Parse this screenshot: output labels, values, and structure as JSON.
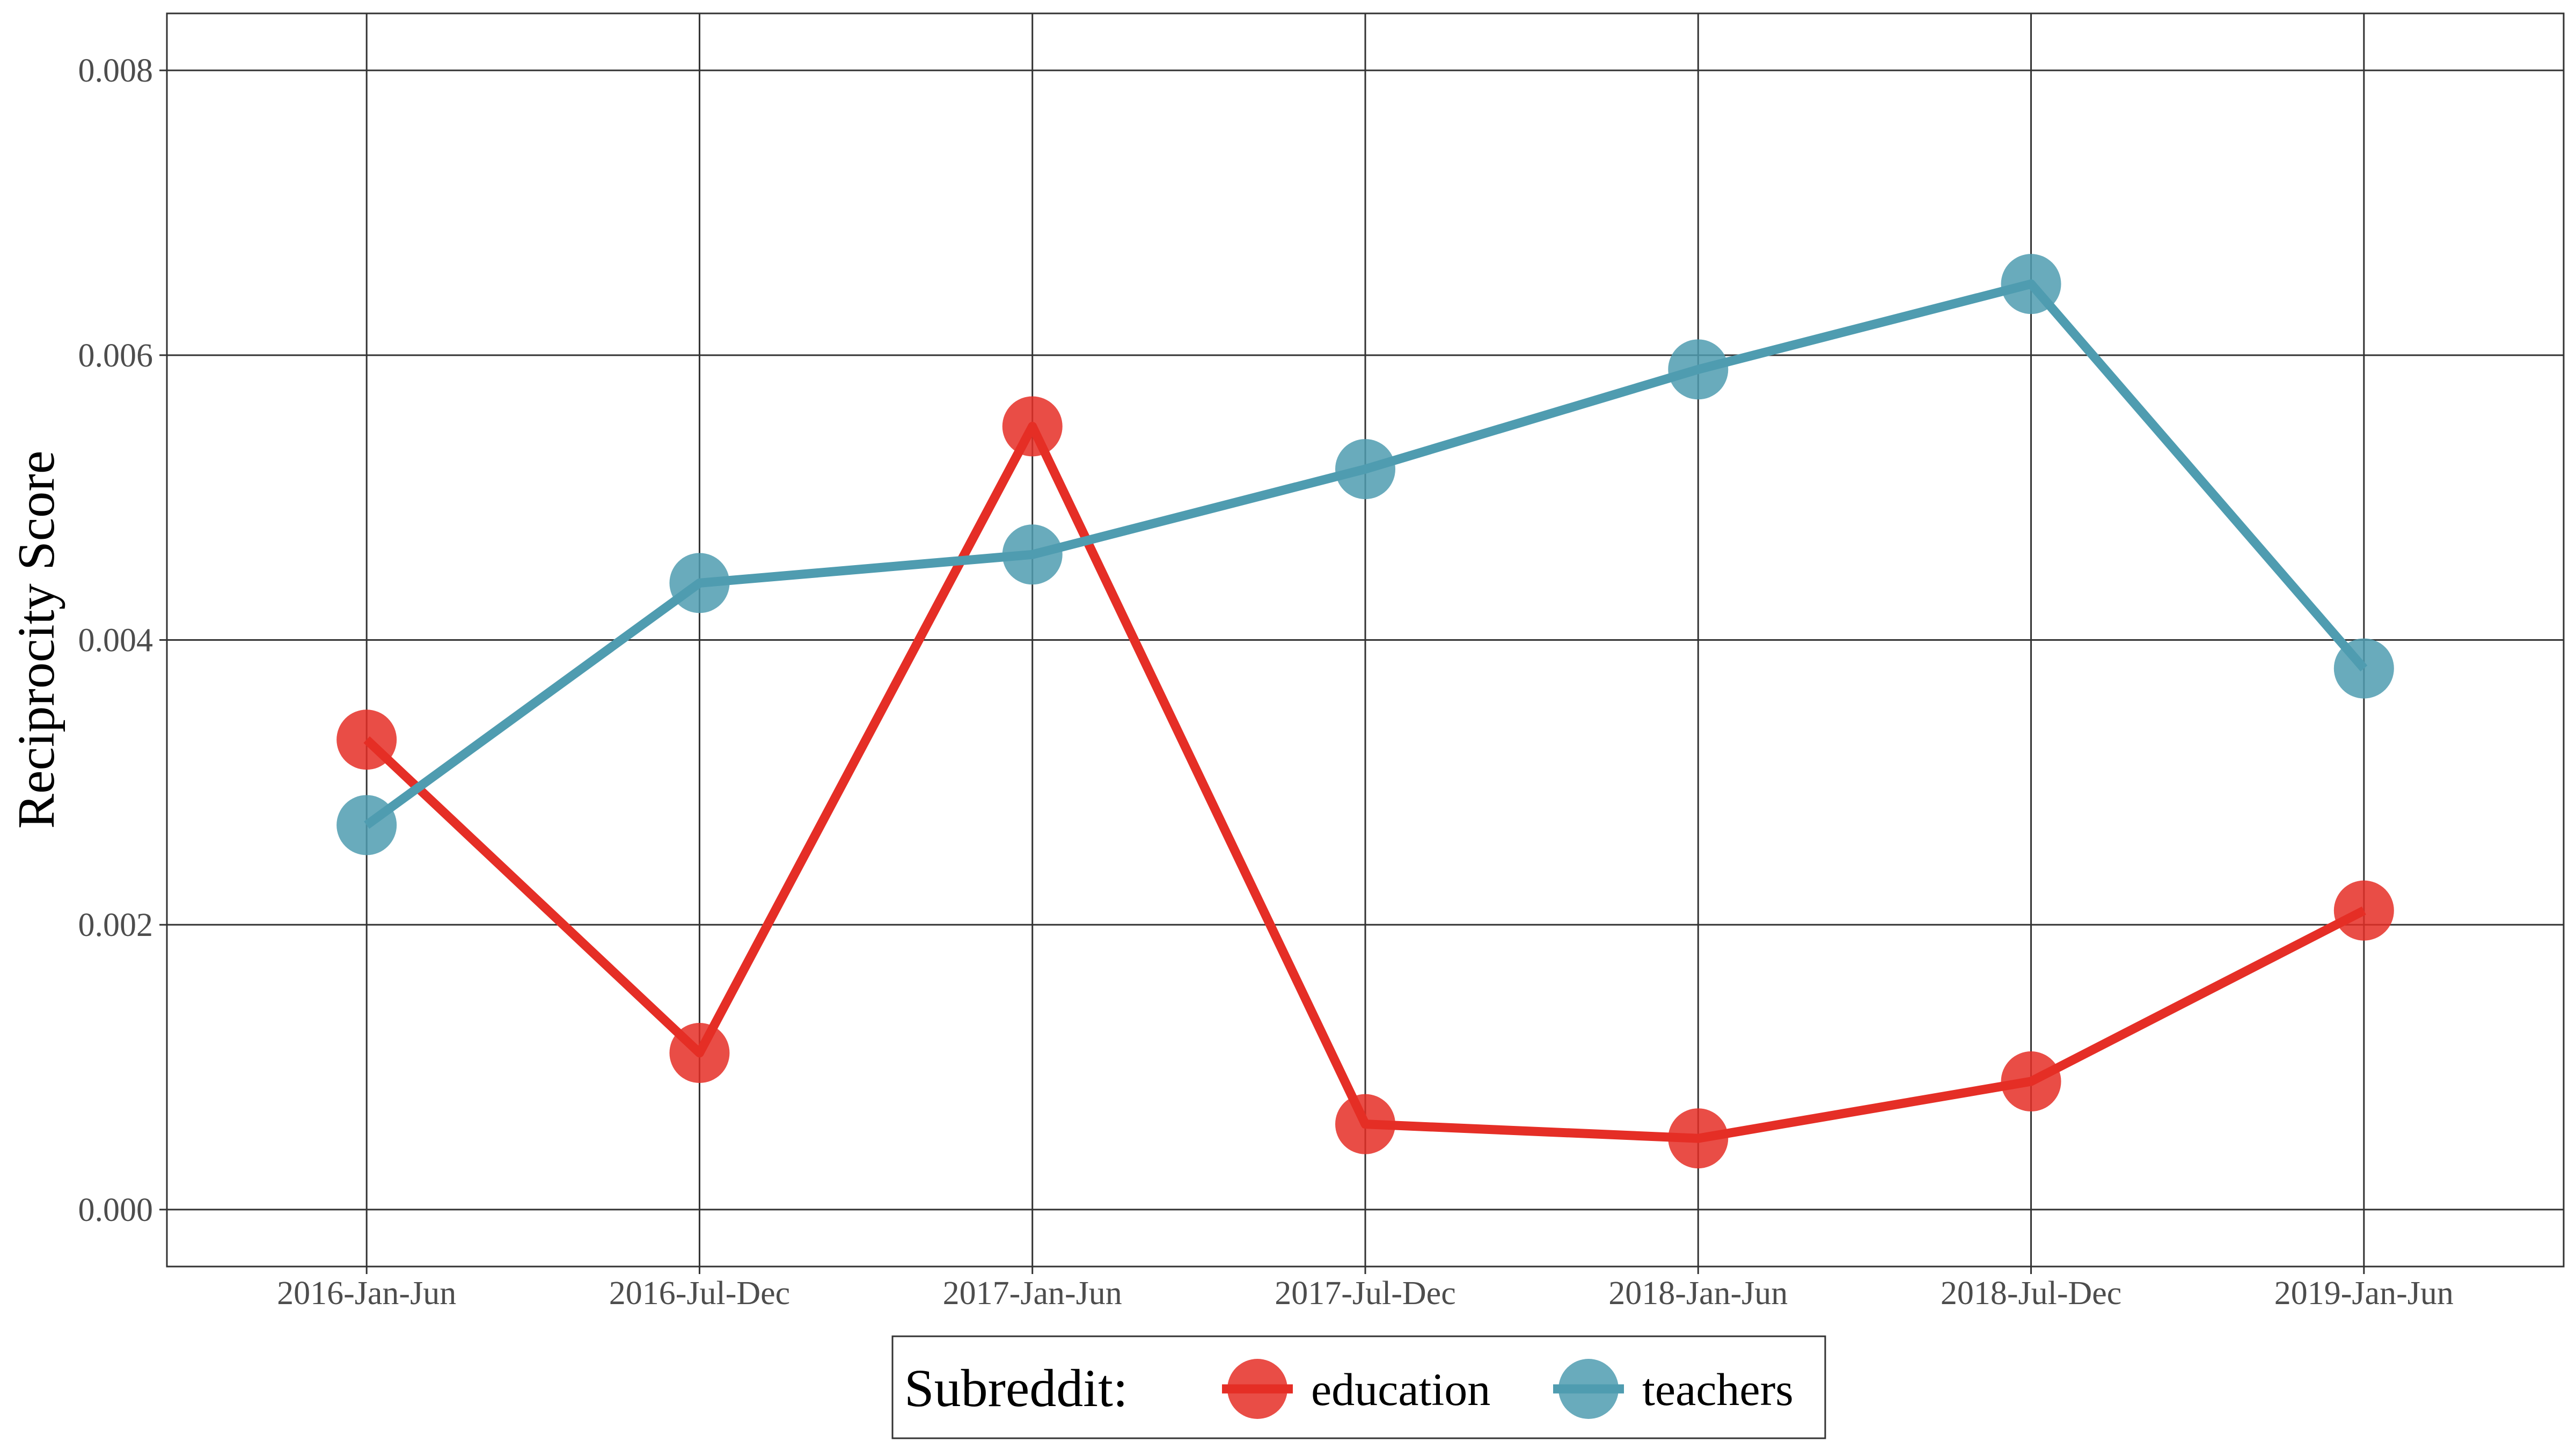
{
  "chart_data": {
    "type": "line",
    "categories": [
      "2016-Jan-Jun",
      "2016-Jul-Dec",
      "2017-Jan-Jun",
      "2017-Jul-Dec",
      "2018-Jan-Jun",
      "2018-Jul-Dec",
      "2019-Jan-Jun"
    ],
    "series": [
      {
        "name": "education",
        "color": "#e52e26",
        "values": [
          0.0033,
          0.0011,
          0.0055,
          0.0006,
          0.0005,
          0.0009,
          0.0021
        ]
      },
      {
        "name": "teachers",
        "color": "#4f9cb0",
        "values": [
          0.0027,
          0.0044,
          0.0046,
          0.0052,
          0.0059,
          0.0065,
          0.0038
        ]
      }
    ],
    "title": "",
    "xlabel": "",
    "ylabel": "Reciprocity Score",
    "ylim": [
      -0.0004,
      0.0084
    ],
    "yticks": [
      "0.000",
      "0.002",
      "0.004",
      "0.006",
      "0.008"
    ],
    "ytick_values": [
      0,
      0.002,
      0.004,
      0.006,
      0.008
    ],
    "grid": true,
    "legend": {
      "title": "Subreddit:",
      "position": "bottom"
    }
  }
}
